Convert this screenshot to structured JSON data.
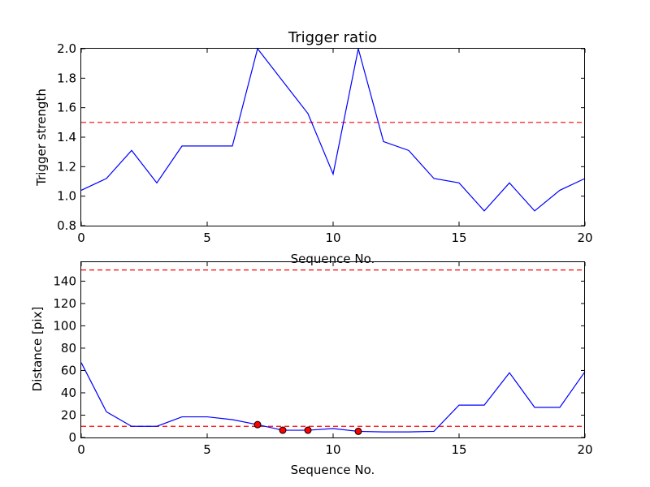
{
  "chart_data": [
    {
      "type": "line",
      "title": "Trigger ratio",
      "xlabel": "Sequence No.",
      "ylabel": "Trigger strength",
      "xlim": [
        0,
        20
      ],
      "ylim": [
        0.8,
        2.0
      ],
      "xticks": [
        0,
        5,
        10,
        15,
        20
      ],
      "xtick_labels": [
        "0",
        "5",
        "10",
        "15",
        "20"
      ],
      "yticks": [
        0.8,
        1.0,
        1.2,
        1.4,
        1.6,
        1.8,
        2.0
      ],
      "ytick_labels": [
        "0.8",
        "1.0",
        "1.2",
        "1.4",
        "1.6",
        "1.8",
        "2.0"
      ],
      "grid": false,
      "series": [
        {
          "x": [
            0,
            1,
            2,
            3,
            4,
            5,
            6,
            7,
            8,
            9,
            10,
            11,
            12,
            13,
            14,
            15,
            16,
            17,
            18,
            19,
            20
          ],
          "values": [
            1.04,
            1.12,
            1.31,
            1.09,
            1.34,
            1.34,
            1.34,
            2.0,
            1.78,
            1.56,
            1.15,
            2.0,
            1.37,
            1.31,
            1.12,
            1.09,
            0.9,
            1.09,
            0.9,
            1.04,
            1.12
          ],
          "color": "#0000ff"
        }
      ],
      "reference_lines": [
        {
          "y": 1.5,
          "color": "#ff0000",
          "style": "dashed"
        }
      ]
    },
    {
      "type": "line",
      "xlabel": "Sequence No.",
      "ylabel": "Distance [pix]",
      "xlim": [
        0,
        20
      ],
      "ylim": [
        0,
        157
      ],
      "xticks": [
        0,
        5,
        10,
        15,
        20
      ],
      "xtick_labels": [
        "0",
        "5",
        "10",
        "15",
        "20"
      ],
      "yticks": [
        0,
        20,
        40,
        60,
        80,
        100,
        120,
        140
      ],
      "ytick_labels": [
        "0",
        "20",
        "40",
        "60",
        "80",
        "100",
        "120",
        "140"
      ],
      "grid": false,
      "series": [
        {
          "x": [
            0,
            1,
            2,
            3,
            4,
            5,
            6,
            7,
            8,
            9,
            10,
            11,
            12,
            13,
            14,
            15,
            16,
            17,
            18,
            19,
            20
          ],
          "values": [
            67,
            23,
            10,
            10,
            18.5,
            18.5,
            16,
            11.5,
            6.5,
            6.5,
            8,
            5.5,
            5,
            5,
            5.5,
            29,
            29,
            58,
            27,
            27,
            59
          ],
          "color": "#0000ff"
        }
      ],
      "markers": {
        "x": [
          7,
          8,
          9,
          11
        ],
        "values": [
          11.5,
          6.5,
          6.5,
          5.5
        ],
        "color": "#ff0000"
      },
      "reference_lines": [
        {
          "y": 150,
          "color": "#ff0000",
          "style": "dashed"
        },
        {
          "y": 10,
          "color": "#ff0000",
          "style": "dashed"
        }
      ]
    }
  ]
}
